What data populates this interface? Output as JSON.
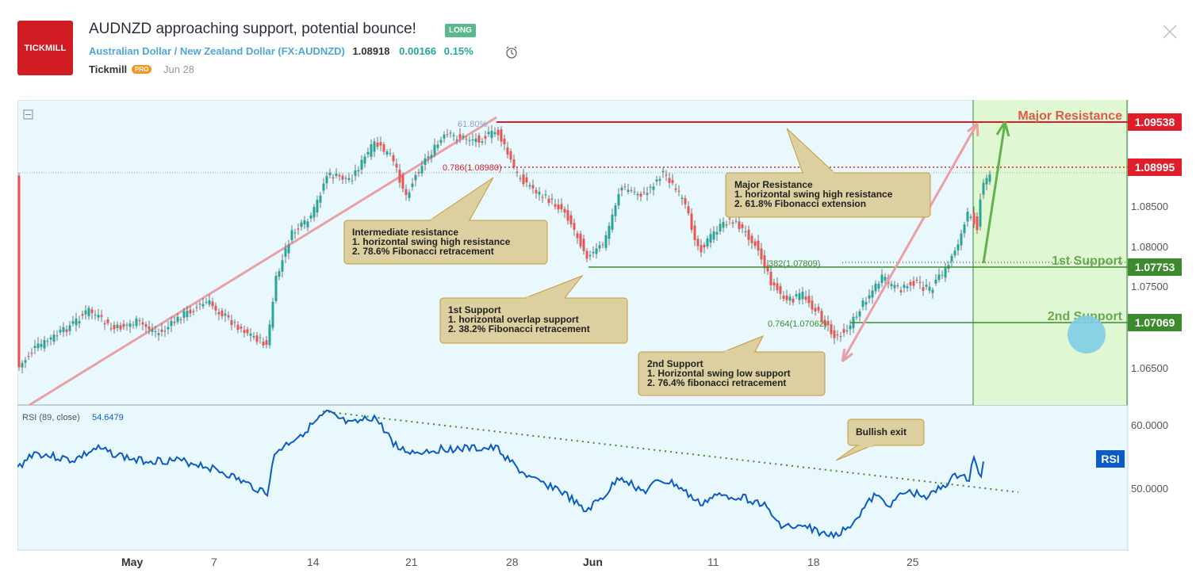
{
  "header": {
    "logo_text": "TICKMILL",
    "title": "AUDNZD approaching support, potential bounce!",
    "badge": "LONG",
    "pair_name": "Australian Dollar / New Zealand Dollar",
    "symbol": "(FX:AUDNZD)",
    "price": "1.08918",
    "change": "0.00166",
    "change_pct": "0.15%",
    "author": "Tickmill",
    "author_badge": "PRO",
    "date": "Jun 28"
  },
  "chart": {
    "price_axis_labels": [
      "1.08500",
      "1.08000",
      "1.07500",
      "1.06500"
    ],
    "price_tags": [
      {
        "value": "1.09538",
        "color": "#e01e2b"
      },
      {
        "value": "1.08995",
        "color": "#e01e2b"
      },
      {
        "value": "1.07753",
        "color": "#3d8a2e"
      },
      {
        "value": "1.07069",
        "color": "#3d8a2e"
      }
    ],
    "fib_labels": {
      "f618": "61.80%",
      "f786": "0.786(1.08980)",
      "f382": "382(1.07809)",
      "f764": "0.764(1.07062)"
    },
    "zone_labels": {
      "major_resistance": "Major Resistance",
      "first_support": "1st Support",
      "second_support": "2nd Support"
    },
    "callouts": {
      "intermediate": [
        "Intermediate resistance",
        "1. horizontal swing high resistance",
        "2. 78.6% Fibonacci retracement"
      ],
      "major": [
        "Major Resistance",
        "1. horizontal swing high resistance",
        "2. 61.8% Fibonacci extension"
      ],
      "first": [
        "1st Support",
        "1. horizontal overlap support",
        "2. 38.2% Fibonacci retracement"
      ],
      "second": [
        "2nd Support",
        "1. Horizontal swing low support",
        "2. 76.4% fibonacci retracement"
      ],
      "bullish": [
        "Bullish exit"
      ]
    },
    "rsi": {
      "label": "RSI (89, close)",
      "value": "54.6479",
      "axis_labels": [
        "60.0000",
        "50.0000"
      ],
      "tag": "RSI"
    },
    "time_labels": [
      "May",
      "7",
      "14",
      "21",
      "28",
      "Jun",
      "11",
      "18",
      "25"
    ]
  },
  "colors": {
    "accent": "#4ca6d8",
    "up": "#26a69a",
    "resistance": "#e01e2b",
    "support": "#3d8a2e",
    "callout_bg": "#dccfa0",
    "rsi_line": "#0b5bc4"
  }
}
